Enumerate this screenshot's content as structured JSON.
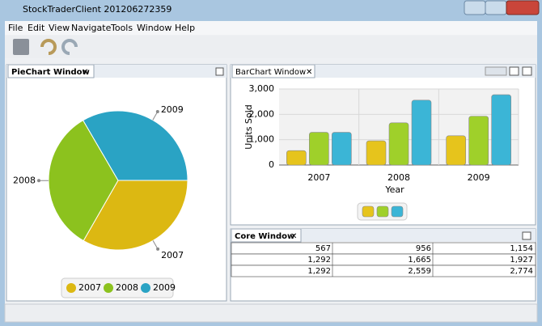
{
  "window": {
    "title": "StockTraderClient 201206272359"
  },
  "menu": [
    "File",
    "Edit",
    "View",
    "Navigate",
    "Tools",
    "Window",
    "Help"
  ],
  "panels": {
    "pie": "PieChart Window",
    "bar": "BarChart Window",
    "core": "Core Window"
  },
  "table": {
    "rows": [
      [
        "567",
        "956",
        "1,154"
      ],
      [
        "1,292",
        "1,665",
        "1,927"
      ],
      [
        "1,292",
        "2,559",
        "2,774"
      ]
    ]
  },
  "chart_data": [
    {
      "type": "pie",
      "categories": [
        "2007",
        "2008",
        "2009"
      ],
      "values": [
        33.3,
        33.3,
        33.4
      ],
      "colors": [
        "#dcb812",
        "#8cc21e",
        "#2aa3c4"
      ],
      "legend": "bottom"
    },
    {
      "type": "bar",
      "categories": [
        "2007",
        "2008",
        "2009"
      ],
      "series": [
        {
          "color": "#e6c41c",
          "values": [
            567,
            956,
            1154
          ]
        },
        {
          "color": "#9fd02a",
          "values": [
            1292,
            1665,
            1927
          ]
        },
        {
          "color": "#3bb5d6",
          "values": [
            1292,
            2559,
            2774
          ]
        }
      ],
      "ylim": [
        0,
        3000
      ],
      "yticks": [
        0,
        {
          "value": 1000,
          "label": "1,000"
        },
        {
          "value": 2000,
          "label": "2,000"
        },
        {
          "value": 3000,
          "label": "3,000"
        }
      ],
      "ylabel": "Units Sold",
      "xlabel": "Year",
      "grid": true,
      "legend": "bottom"
    }
  ]
}
